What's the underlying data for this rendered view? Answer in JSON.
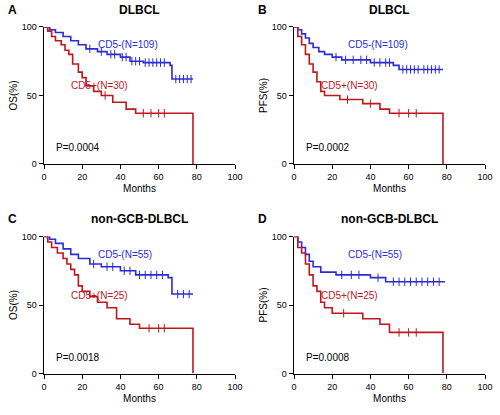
{
  "chart_data": [
    {
      "type": "line",
      "line_style": "step",
      "marker": "censor",
      "title": "DLBCL",
      "annotations": [
        "A",
        "P=0.0004"
      ],
      "x_label": "Months",
      "y_label": "OS(%)",
      "xlim": [
        0,
        100
      ],
      "xticks": [
        0,
        20,
        40,
        60,
        80,
        100
      ],
      "ylim": [
        0,
        100
      ],
      "yticks": [
        0,
        50,
        100
      ],
      "grid": false,
      "series": [
        {
          "name": "CD5-(N=109)",
          "color": "#2b2bd9",
          "x": [
            0,
            3,
            6,
            10,
            14,
            18,
            22,
            28,
            33,
            40,
            45,
            52,
            66,
            67,
            78
          ],
          "values": [
            100,
            98,
            96,
            93,
            90,
            87,
            84,
            82,
            80,
            78,
            75,
            74,
            72,
            62,
            62
          ],
          "censored": [
            24,
            30,
            35,
            37,
            41,
            43,
            46,
            48,
            50,
            53,
            55,
            57,
            59,
            61,
            63,
            69,
            71,
            73,
            75,
            77
          ]
        },
        {
          "name": "CD5+(N=30)",
          "color": "#c0161e",
          "x": [
            0,
            2,
            4,
            6,
            9,
            11,
            13,
            15,
            18,
            20,
            22,
            26,
            30,
            36,
            43,
            48,
            78
          ],
          "values": [
            100,
            97,
            93,
            90,
            87,
            83,
            80,
            73,
            67,
            63,
            57,
            53,
            50,
            45,
            40,
            37,
            0
          ],
          "censored": [
            32,
            52,
            56,
            60,
            63
          ]
        }
      ]
    },
    {
      "type": "line",
      "line_style": "step",
      "marker": "censor",
      "title": "DLBCL",
      "annotations": [
        "B",
        "P=0.0002"
      ],
      "x_label": "Months",
      "y_label": "PFS(%)",
      "xlim": [
        0,
        100
      ],
      "xticks": [
        0,
        20,
        40,
        60,
        80,
        100
      ],
      "ylim": [
        0,
        100
      ],
      "yticks": [
        0,
        50,
        100
      ],
      "grid": false,
      "series": [
        {
          "name": "CD5-(N=109)",
          "color": "#2b2bd9",
          "x": [
            0,
            2,
            4,
            6,
            8,
            10,
            13,
            16,
            20,
            25,
            40,
            52,
            55,
            78
          ],
          "values": [
            100,
            98,
            95,
            92,
            88,
            85,
            82,
            80,
            78,
            76,
            74,
            72,
            69,
            69
          ],
          "censored": [
            22,
            27,
            31,
            35,
            38,
            42,
            45,
            48,
            50,
            57,
            59,
            61,
            63,
            65,
            68,
            70,
            72,
            74,
            76
          ]
        },
        {
          "name": "CD5+(N=30)",
          "color": "#c0161e",
          "x": [
            0,
            2,
            4,
            6,
            8,
            10,
            12,
            14,
            16,
            24,
            36,
            45,
            50,
            78
          ],
          "values": [
            100,
            93,
            87,
            80,
            73,
            67,
            60,
            53,
            50,
            47,
            44,
            40,
            37,
            0
          ],
          "censored": [
            28,
            40,
            55,
            60,
            64
          ]
        }
      ]
    },
    {
      "type": "line",
      "line_style": "step",
      "marker": "censor",
      "title": "non-GCB-DLBCL",
      "annotations": [
        "C",
        "P=0.0018"
      ],
      "x_label": "Months",
      "y_label": "OS(%)",
      "xlim": [
        0,
        100
      ],
      "xticks": [
        0,
        20,
        40,
        60,
        80,
        100
      ],
      "ylim": [
        0,
        100
      ],
      "yticks": [
        0,
        50,
        100
      ],
      "grid": false,
      "series": [
        {
          "name": "CD5-(N=55)",
          "color": "#2b2bd9",
          "x": [
            0,
            3,
            6,
            10,
            14,
            18,
            24,
            30,
            40,
            48,
            65,
            67,
            78
          ],
          "values": [
            100,
            98,
            95,
            91,
            87,
            84,
            80,
            78,
            75,
            72,
            70,
            58,
            58
          ],
          "censored": [
            26,
            33,
            36,
            42,
            45,
            50,
            53,
            56,
            59,
            62,
            70,
            73,
            76
          ]
        },
        {
          "name": "CD5+(N=25)",
          "color": "#c0161e",
          "x": [
            0,
            2,
            4,
            7,
            10,
            12,
            14,
            16,
            18,
            20,
            24,
            28,
            33,
            38,
            45,
            50,
            78
          ],
          "values": [
            100,
            96,
            92,
            88,
            84,
            80,
            76,
            72,
            64,
            60,
            56,
            52,
            48,
            40,
            36,
            33,
            0
          ],
          "censored": [
            55,
            60,
            63
          ]
        }
      ]
    },
    {
      "type": "line",
      "line_style": "step",
      "marker": "censor",
      "title": "non-GCB-DLBCL",
      "annotations": [
        "D",
        "P=0.0008"
      ],
      "x_label": "Months",
      "y_label": "PFS(%)",
      "xlim": [
        0,
        100
      ],
      "xticks": [
        0,
        20,
        40,
        60,
        80,
        100
      ],
      "ylim": [
        0,
        100
      ],
      "yticks": [
        0,
        50,
        100
      ],
      "grid": false,
      "series": [
        {
          "name": "CD5-(N=55)",
          "color": "#2b2bd9",
          "x": [
            0,
            2,
            4,
            6,
            8,
            10,
            14,
            22,
            40,
            48,
            79
          ],
          "values": [
            100,
            96,
            92,
            87,
            82,
            78,
            74,
            72,
            70,
            67,
            67
          ],
          "censored": [
            25,
            30,
            34,
            44,
            52,
            55,
            58,
            61,
            64,
            67,
            70,
            73,
            76
          ]
        },
        {
          "name": "CD5+(N=25)",
          "color": "#c0161e",
          "x": [
            0,
            2,
            4,
            6,
            8,
            10,
            12,
            14,
            16,
            20,
            36,
            45,
            50,
            78
          ],
          "values": [
            100,
            92,
            88,
            80,
            72,
            64,
            60,
            52,
            48,
            44,
            40,
            36,
            30,
            0
          ],
          "censored": [
            26,
            55,
            60,
            64
          ]
        }
      ]
    }
  ]
}
